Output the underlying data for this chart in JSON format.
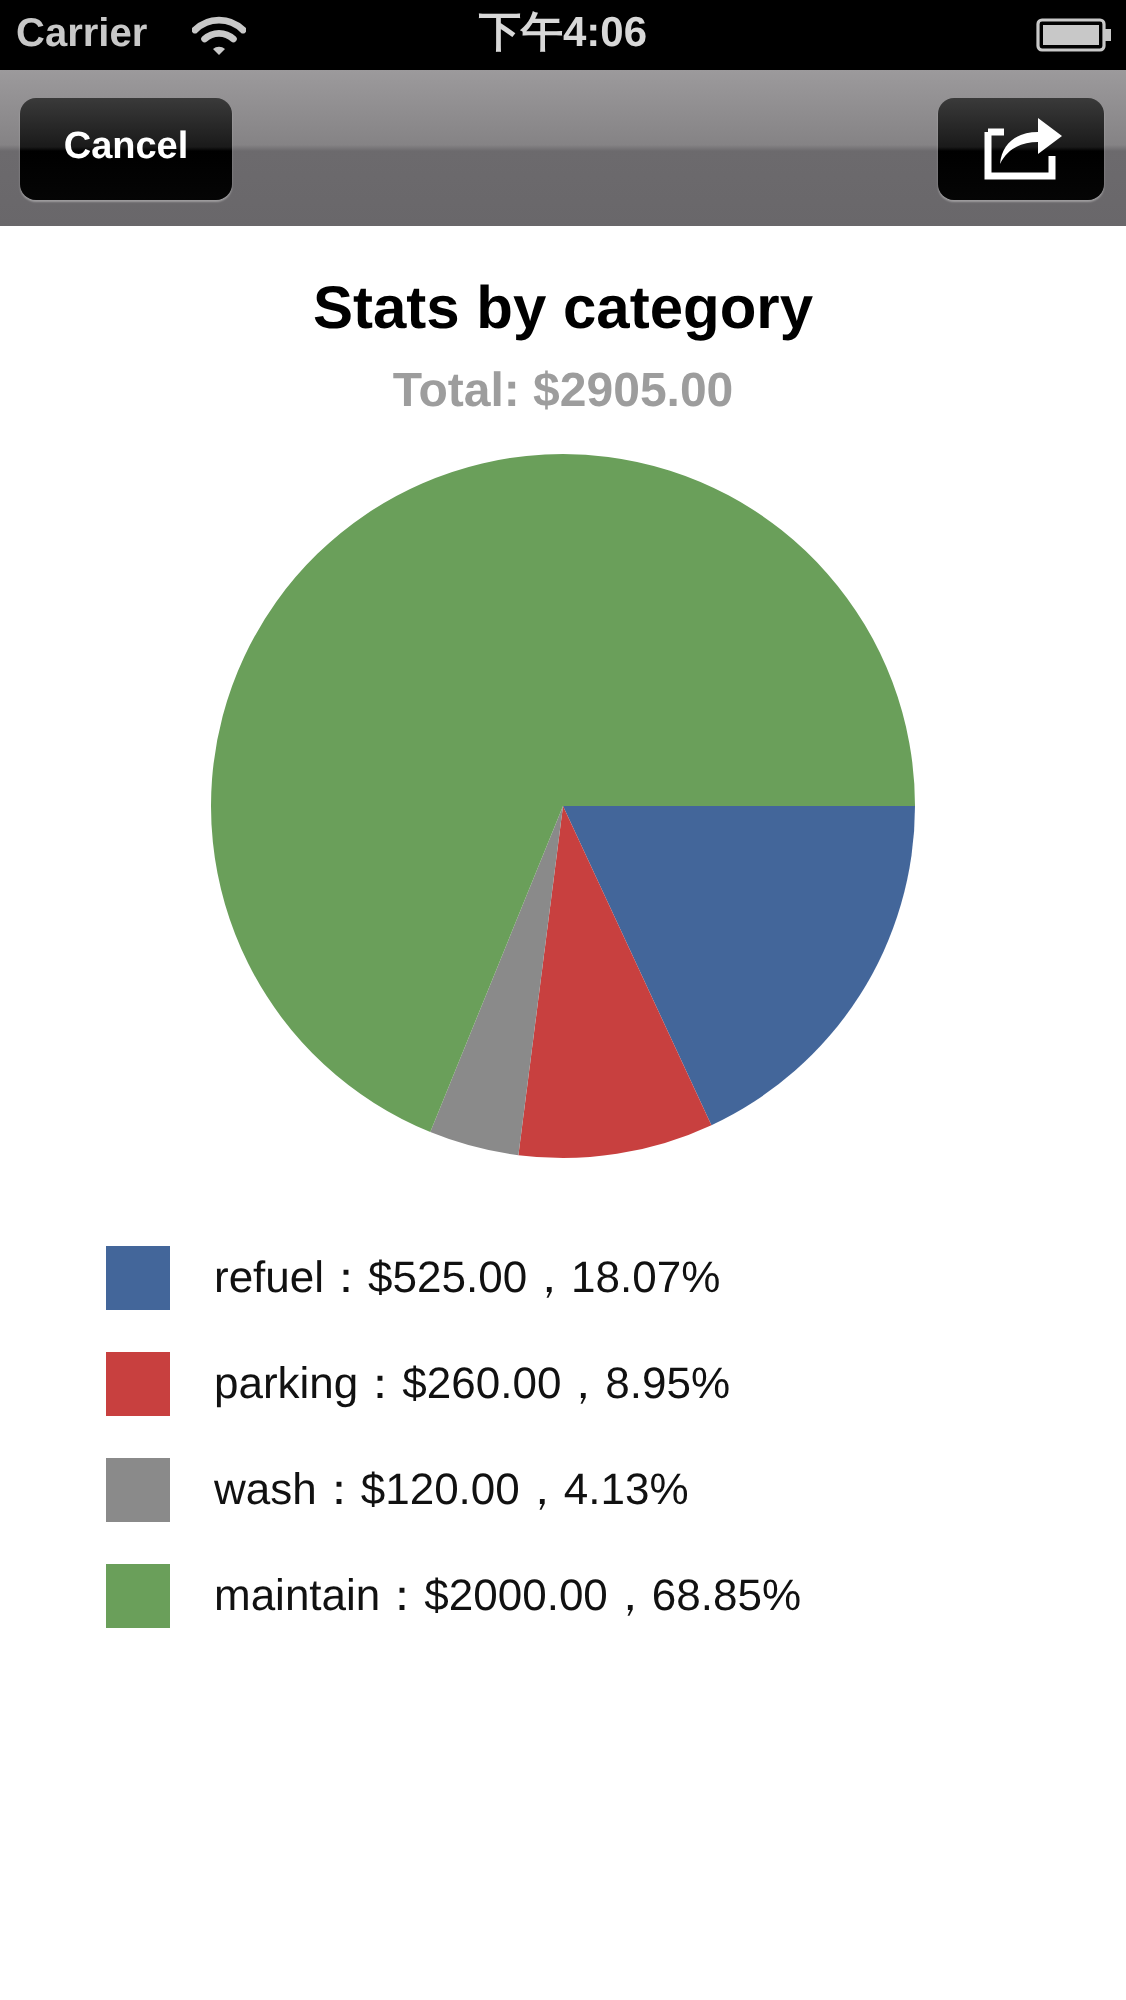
{
  "chart_data": {
    "type": "pie",
    "title": "Stats by category",
    "subtitle": "Total: $2905.00",
    "categories": [
      "refuel：$525.00，18.07%",
      "parking：$260.00，8.95%",
      "wash：$120.00，4.13%",
      "maintain：$2000.00，68.85%"
    ],
    "values": [
      525,
      260,
      120,
      2000
    ],
    "colors": [
      "#43669a",
      "#c8403f",
      "#8a8a8a",
      "#6a9f5a"
    ],
    "legend": "bottom",
    "annotations": [
      "Carrier",
      "下午4:06",
      "Cancel"
    ]
  }
}
